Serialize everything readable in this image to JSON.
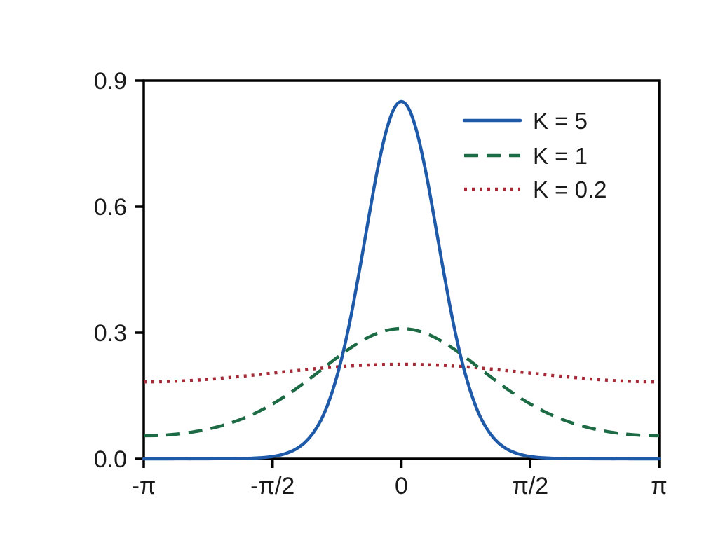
{
  "figure": {
    "background_color": "#ffffff",
    "axis_color": "#000000",
    "text_color": "#1a1a1a"
  },
  "chart_data": {
    "type": "line",
    "title": "",
    "xlabel": "",
    "ylabel": "",
    "grid": false,
    "legend_position": "upper right inside, no border",
    "xlim_pi": [
      -1,
      1
    ],
    "ylim": [
      0,
      0.9
    ],
    "x_ticks": {
      "values_pi": [
        -1,
        -0.5,
        0,
        0.5,
        1
      ],
      "labels": [
        "-π",
        "-π/2",
        "0",
        "π/2",
        "π"
      ]
    },
    "y_ticks": {
      "values": [
        0,
        0.3,
        0.6,
        0.9
      ],
      "labels": [
        "0.0",
        "0.3",
        "0.6",
        "0.9"
      ]
    },
    "series": [
      {
        "id": "k5",
        "name": "K = 5",
        "color": "#1f5aa8",
        "line_style": "solid",
        "peak_y": 0.85,
        "x_pi": [
          -1,
          -0.96875,
          -0.9375,
          -0.90625,
          -0.875,
          -0.84375,
          -0.8125,
          -0.78125,
          -0.75,
          -0.71875,
          -0.6875,
          -0.65625,
          -0.625,
          -0.59375,
          -0.5625,
          -0.53125,
          -0.5,
          -0.46875,
          -0.4375,
          -0.40625,
          -0.375,
          -0.34375,
          -0.3125,
          -0.28125,
          -0.25,
          -0.21875,
          -0.1875,
          -0.15625,
          -0.125,
          -0.09375,
          -0.0625,
          -0.03125,
          0,
          0.03125,
          0.0625,
          0.09375,
          0.125,
          0.15625,
          0.1875,
          0.21875,
          0.25,
          0.28125,
          0.3125,
          0.34375,
          0.375,
          0.40625,
          0.4375,
          0.46875,
          0.5,
          0.53125,
          0.5625,
          0.59375,
          0.625,
          0.65625,
          0.6875,
          0.71875,
          0.75,
          0.78125,
          0.8125,
          0.84375,
          0.875,
          0.90625,
          0.9375,
          0.96875,
          1
        ],
        "y": [
          0,
          0,
          0,
          0,
          0.0001,
          0.0001,
          0.0001,
          0.0002,
          0.0002,
          0.0003,
          0.0004,
          0.0005,
          0.0008,
          0.0013,
          0.0022,
          0.0034,
          0.0057,
          0.0093,
          0.0152,
          0.0245,
          0.0388,
          0.0605,
          0.092,
          0.1367,
          0.197,
          0.2732,
          0.366,
          0.471,
          0.581,
          0.6853,
          0.772,
          0.8298,
          0.85,
          0.8298,
          0.772,
          0.6853,
          0.581,
          0.471,
          0.366,
          0.2732,
          0.197,
          0.1367,
          0.092,
          0.0605,
          0.0388,
          0.0245,
          0.0152,
          0.0093,
          0.0057,
          0.0034,
          0.0022,
          0.0013,
          0.0008,
          0.0005,
          0.0004,
          0.0003,
          0.0002,
          0.0002,
          0.0001,
          0.0001,
          0.0001,
          0,
          0,
          0,
          0
        ]
      },
      {
        "id": "k1",
        "name": "K = 1",
        "color": "#1d6b45",
        "line_style": "dashed",
        "peak_y": 0.31,
        "x_pi": [
          -1,
          -0.9375,
          -0.875,
          -0.8125,
          -0.75,
          -0.6875,
          -0.625,
          -0.5625,
          -0.5,
          -0.4375,
          -0.375,
          -0.3125,
          -0.25,
          -0.1875,
          -0.125,
          -0.0625,
          0,
          0.0625,
          0.125,
          0.1875,
          0.25,
          0.3125,
          0.375,
          0.4375,
          0.5,
          0.5625,
          0.625,
          0.6875,
          0.75,
          0.8125,
          0.875,
          0.9375,
          1
        ],
        "y": [
          0.055,
          0.0559,
          0.0587,
          0.0636,
          0.0708,
          0.0807,
          0.0937,
          0.1102,
          0.1305,
          0.1545,
          0.1817,
          0.211,
          0.2406,
          0.2679,
          0.2902,
          0.3048,
          0.31,
          0.3048,
          0.2902,
          0.2679,
          0.2406,
          0.211,
          0.1817,
          0.1545,
          0.1305,
          0.1102,
          0.0937,
          0.0807,
          0.0708,
          0.0636,
          0.0587,
          0.0559,
          0.055
        ]
      },
      {
        "id": "k02",
        "name": "K = 0.2",
        "color": "#a32a36",
        "line_style": "dotted",
        "peak_y": 0.225,
        "x_pi": [
          -1,
          -0.9375,
          -0.875,
          -0.8125,
          -0.75,
          -0.6875,
          -0.625,
          -0.5625,
          -0.5,
          -0.4375,
          -0.375,
          -0.3125,
          -0.25,
          -0.1875,
          -0.125,
          -0.0625,
          0,
          0.0625,
          0.125,
          0.1875,
          0.25,
          0.3125,
          0.375,
          0.4375,
          0.5,
          0.5625,
          0.625,
          0.6875,
          0.75,
          0.8125,
          0.875,
          0.9375,
          1
        ],
        "y": [
          0.183,
          0.1834,
          0.1846,
          0.1865,
          0.1892,
          0.1923,
          0.196,
          0.1999,
          0.204,
          0.2081,
          0.212,
          0.2157,
          0.2188,
          0.2215,
          0.2234,
          0.2246,
          0.225,
          0.2246,
          0.2234,
          0.2215,
          0.2188,
          0.2157,
          0.212,
          0.2081,
          0.204,
          0.1999,
          0.196,
          0.1923,
          0.1892,
          0.1865,
          0.1846,
          0.1834,
          0.183
        ]
      }
    ]
  }
}
